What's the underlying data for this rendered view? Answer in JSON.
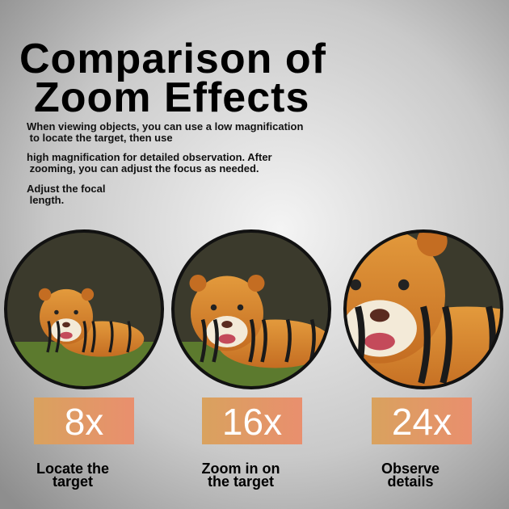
{
  "header": {
    "title": [
      "Comparison of",
      "Zoom Effects"
    ],
    "description": [
      "When viewing objects, you can use a low magnification",
      " to locate the target, then use",
      "high magnification for detailed observation. After",
      " zooming, you can adjust the focus as needed.",
      "Adjust the focal",
      " length."
    ]
  },
  "panels": [
    {
      "zoom": "8x",
      "caption": [
        "Locate the",
        "target"
      ]
    },
    {
      "zoom": "16x",
      "caption": [
        "Zoom in on",
        "the target"
      ]
    },
    {
      "zoom": "24x",
      "caption": [
        "Observe",
        "details"
      ]
    }
  ]
}
